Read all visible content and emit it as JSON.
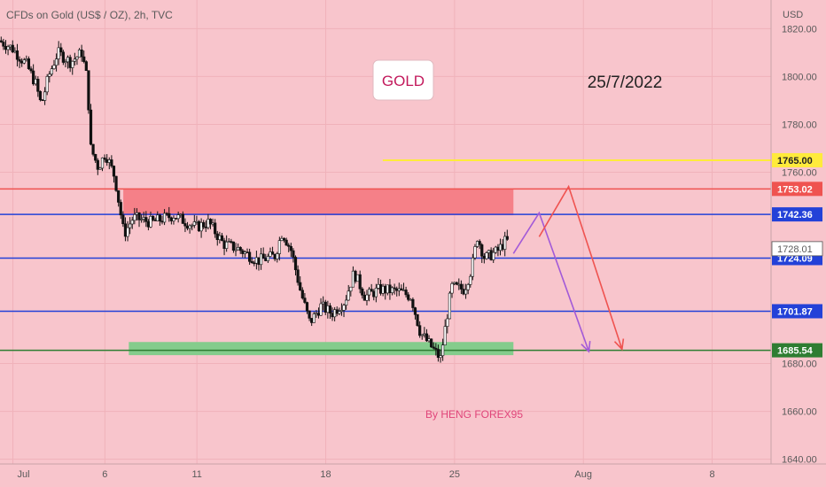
{
  "header": {
    "symbol_title": "CFDs on Gold (US$ / OZ), 2h, TVC",
    "currency": "USD"
  },
  "annotations": {
    "label": "GOLD",
    "date": "25/7/2022",
    "author": "By HENG FOREX95"
  },
  "chart_data": {
    "type": "candlestick",
    "title": "CFDs on Gold (US$ / OZ), 2h, TVC",
    "y_unit": "USD",
    "ylim": [
      1638,
      1832
    ],
    "y_ticks": [
      {
        "value": 1820,
        "label": "1820.00"
      },
      {
        "value": 1800,
        "label": "1800.00"
      },
      {
        "value": 1780,
        "label": "1780.00"
      },
      {
        "value": 1760,
        "label": "1760.00"
      },
      {
        "value": 1680,
        "label": "1680.00"
      },
      {
        "value": 1660,
        "label": "1660.00"
      },
      {
        "value": 1640,
        "label": "1640.00"
      }
    ],
    "x_ticks": [
      {
        "label": "Jul",
        "day": 1
      },
      {
        "label": "6",
        "day": 6
      },
      {
        "label": "11",
        "day": 11
      },
      {
        "label": "18",
        "day": 18
      },
      {
        "label": "25",
        "day": 25
      },
      {
        "label": "Aug",
        "day": 32
      },
      {
        "label": "8",
        "day": 39
      }
    ],
    "xlim_days": [
      0.3,
      42.2
    ],
    "price_path": [
      {
        "day": 0.3,
        "price": 1815
      },
      {
        "day": 1,
        "price": 1812
      },
      {
        "day": 1.8,
        "price": 1805
      },
      {
        "day": 2.3,
        "price": 1797
      },
      {
        "day": 2.6,
        "price": 1788
      },
      {
        "day": 3,
        "price": 1800
      },
      {
        "day": 3.5,
        "price": 1810
      },
      {
        "day": 4.2,
        "price": 1806
      },
      {
        "day": 4.8,
        "price": 1810
      },
      {
        "day": 5.1,
        "price": 1799
      },
      {
        "day": 5.3,
        "price": 1770
      },
      {
        "day": 5.7,
        "price": 1762
      },
      {
        "day": 6.1,
        "price": 1768
      },
      {
        "day": 6.6,
        "price": 1758
      },
      {
        "day": 7.1,
        "price": 1734
      },
      {
        "day": 7.6,
        "price": 1741
      },
      {
        "day": 8.6,
        "price": 1739
      },
      {
        "day": 9.8,
        "price": 1742
      },
      {
        "day": 11,
        "price": 1737
      },
      {
        "day": 11.7,
        "price": 1739
      },
      {
        "day": 12.5,
        "price": 1730
      },
      {
        "day": 13.3,
        "price": 1728
      },
      {
        "day": 14.4,
        "price": 1723
      },
      {
        "day": 15.3,
        "price": 1725
      },
      {
        "day": 15.7,
        "price": 1735
      },
      {
        "day": 16.2,
        "price": 1727
      },
      {
        "day": 16.7,
        "price": 1710
      },
      {
        "day": 17.2,
        "price": 1697
      },
      {
        "day": 17.8,
        "price": 1704
      },
      {
        "day": 18.4,
        "price": 1701
      },
      {
        "day": 19.1,
        "price": 1706
      },
      {
        "day": 19.6,
        "price": 1718
      },
      {
        "day": 20.2,
        "price": 1708
      },
      {
        "day": 21,
        "price": 1711
      },
      {
        "day": 22.1,
        "price": 1710
      },
      {
        "day": 22.7,
        "price": 1708
      },
      {
        "day": 23.2,
        "price": 1693
      },
      {
        "day": 23.9,
        "price": 1686
      },
      {
        "day": 24.3,
        "price": 1682
      },
      {
        "day": 24.6,
        "price": 1697
      },
      {
        "day": 24.9,
        "price": 1712
      },
      {
        "day": 25.6,
        "price": 1711
      },
      {
        "day": 26,
        "price": 1720
      },
      {
        "day": 26.3,
        "price": 1733
      },
      {
        "day": 26.7,
        "price": 1724
      },
      {
        "day": 27.4,
        "price": 1727
      },
      {
        "day": 27.8,
        "price": 1731
      }
    ],
    "zones": [
      {
        "name": "resistance-zone",
        "day_start": 7,
        "day_end": 28.2,
        "low": 1742,
        "high": 1753,
        "color": "#f58088"
      },
      {
        "name": "support-zone",
        "day_start": 7.3,
        "day_end": 28.2,
        "low": 1683.5,
        "high": 1689,
        "color": "#84cc8c"
      }
    ],
    "levels": [
      {
        "value": 1765.0,
        "label": "1765.00",
        "color": "#ffeb3b",
        "text_color": "#222222",
        "day_start": 21.1
      },
      {
        "value": 1753.02,
        "label": "1753.02",
        "color": "#ef5350",
        "text_color": "#ffffff",
        "day_start": 0.3
      },
      {
        "value": 1742.36,
        "label": "1742.36",
        "color": "#2341d8",
        "text_color": "#ffffff",
        "day_start": 0.3
      },
      {
        "value": 1724.09,
        "label": "1724.09",
        "color": "#2341d8",
        "text_color": "#ffffff",
        "day_start": 0.3
      },
      {
        "value": 1701.87,
        "label": "1701.87",
        "color": "#2341d8",
        "text_color": "#ffffff",
        "day_start": 0.3
      },
      {
        "value": 1685.54,
        "label": "1685.54",
        "color": "#2e7d32",
        "text_color": "#ffffff",
        "day_start": 0.3
      }
    ],
    "current_price": {
      "value": 1728.01,
      "label": "1728.01"
    },
    "projections": [
      {
        "name": "purple-path",
        "color": "#a25ad8",
        "points": [
          {
            "day": 28.2,
            "price": 1726
          },
          {
            "day": 29.6,
            "price": 1743
          },
          {
            "day": 32.3,
            "price": 1685
          }
        ]
      },
      {
        "name": "red-path",
        "color": "#ef5350",
        "points": [
          {
            "day": 29.6,
            "price": 1733
          },
          {
            "day": 31.2,
            "price": 1754
          },
          {
            "day": 34.1,
            "price": 1686
          }
        ]
      }
    ]
  }
}
